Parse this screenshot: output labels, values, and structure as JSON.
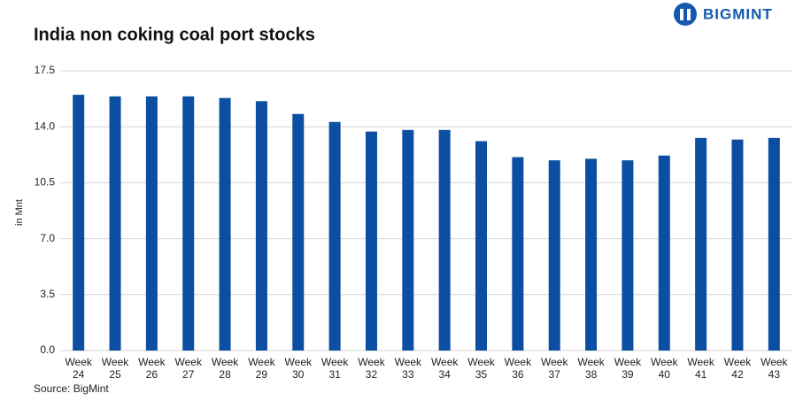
{
  "brand": "BIGMINT",
  "chart_data": {
    "type": "bar",
    "title": "India non coking coal port stocks",
    "y_label": "in Mnt",
    "source": "Source: BigMint",
    "categories": [
      "Week 24",
      "Week 25",
      "Week 26",
      "Week 27",
      "Week 28",
      "Week 29",
      "Week 30",
      "Week 31",
      "Week 32",
      "Week 33",
      "Week 34",
      "Week 35",
      "Week 36",
      "Week 37",
      "Week 38",
      "Week 39",
      "Week 40",
      "Week 41",
      "Week 42",
      "Week 43"
    ],
    "values": [
      16.0,
      15.9,
      15.9,
      15.9,
      15.8,
      15.6,
      14.8,
      14.3,
      13.7,
      13.8,
      13.8,
      13.1,
      12.1,
      11.9,
      12.0,
      11.9,
      12.2,
      13.3,
      13.2,
      13.3
    ],
    "color": "#0b4ea2",
    "ylim": [
      0,
      17.5
    ],
    "yticks": [
      {
        "value": 0,
        "label": "0.0"
      },
      3.5,
      {
        "value": 7,
        "label": "7.0"
      },
      10.5,
      {
        "value": 14,
        "label": "14.0"
      },
      17.5
    ],
    "grid": true
  }
}
